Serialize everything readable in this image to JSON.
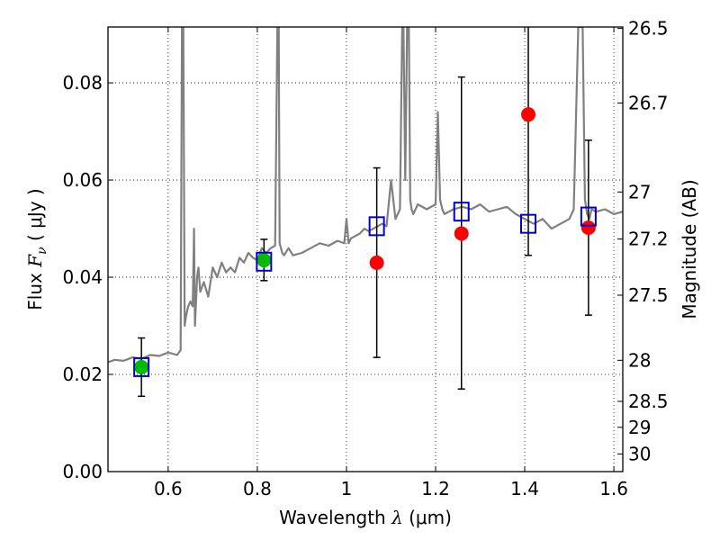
{
  "chart_data": {
    "type": "scatter",
    "xlabel_text": "Wavelength",
    "xlabel_symbol": "λ",
    "xlabel_units": "(μm)",
    "ylabel_text": "Flux",
    "ylabel_symbol": "F",
    "ylabel_subscript": "ν",
    "ylabel_units": "( μJy )",
    "y2label": "Magnitude (AB)",
    "xlim": [
      0.465,
      1.62
    ],
    "ylim": [
      0.0,
      0.0915
    ],
    "xticks": [
      0.6,
      0.8,
      1.0,
      1.2,
      1.4,
      1.6
    ],
    "xtick_labels": [
      "0.6",
      "0.8",
      "1",
      "1.2",
      "1.4",
      "1.6"
    ],
    "yticks": [
      0.0,
      0.02,
      0.04,
      0.06,
      0.08
    ],
    "ytick_labels": [
      "0.00",
      "0.02",
      "0.04",
      "0.06",
      "0.08"
    ],
    "y2ticks": [
      {
        "mag": 26.5,
        "label": "26.5"
      },
      {
        "mag": 26.7,
        "label": "26.7"
      },
      {
        "mag": 27.0,
        "label": "27"
      },
      {
        "mag": 27.2,
        "label": "27.2"
      },
      {
        "mag": 27.5,
        "label": "27.5"
      },
      {
        "mag": 28.0,
        "label": "28"
      },
      {
        "mag": 28.5,
        "label": "28.5"
      },
      {
        "mag": 29.0,
        "label": "29"
      },
      {
        "mag": 30.0,
        "label": "30"
      }
    ],
    "grid": true,
    "series": [
      {
        "name": "model-spectrum",
        "kind": "line",
        "color": "#808080",
        "x": [
          0.465,
          0.48,
          0.5,
          0.52,
          0.54,
          0.56,
          0.58,
          0.6,
          0.62,
          0.628,
          0.631,
          0.634,
          0.637,
          0.64,
          0.645,
          0.65,
          0.655,
          0.658,
          0.66,
          0.663,
          0.665,
          0.668,
          0.672,
          0.68,
          0.69,
          0.7,
          0.71,
          0.72,
          0.73,
          0.74,
          0.75,
          0.76,
          0.77,
          0.78,
          0.79,
          0.8,
          0.81,
          0.82,
          0.83,
          0.84,
          0.845,
          0.848,
          0.85,
          0.853,
          0.856,
          0.86,
          0.87,
          0.88,
          0.9,
          0.92,
          0.94,
          0.96,
          0.98,
          0.995,
          1.0,
          1.005,
          1.01,
          1.02,
          1.03,
          1.04,
          1.05,
          1.06,
          1.07,
          1.08,
          1.09,
          1.1,
          1.11,
          1.12,
          1.125,
          1.128,
          1.132,
          1.136,
          1.14,
          1.143,
          1.146,
          1.15,
          1.16,
          1.18,
          1.2,
          1.205,
          1.21,
          1.215,
          1.22,
          1.24,
          1.26,
          1.28,
          1.3,
          1.32,
          1.34,
          1.36,
          1.38,
          1.4,
          1.42,
          1.44,
          1.46,
          1.48,
          1.5,
          1.51,
          1.52,
          1.53,
          1.535,
          1.54,
          1.545,
          1.55,
          1.56,
          1.58,
          1.6,
          1.62
        ],
        "y": [
          0.0225,
          0.023,
          0.0228,
          0.0235,
          0.0232,
          0.024,
          0.0238,
          0.0245,
          0.024,
          0.025,
          0.0915,
          0.0915,
          0.03,
          0.032,
          0.034,
          0.035,
          0.034,
          0.05,
          0.03,
          0.036,
          0.04,
          0.042,
          0.037,
          0.039,
          0.036,
          0.042,
          0.04,
          0.043,
          0.041,
          0.042,
          0.041,
          0.044,
          0.043,
          0.045,
          0.044,
          0.0435,
          0.046,
          0.045,
          0.046,
          0.0465,
          0.0915,
          0.0915,
          0.047,
          0.046,
          0.045,
          0.0445,
          0.046,
          0.0445,
          0.045,
          0.046,
          0.047,
          0.0465,
          0.0475,
          0.047,
          0.052,
          0.047,
          0.048,
          0.0485,
          0.049,
          0.05,
          0.0495,
          0.05,
          0.0505,
          0.051,
          0.0505,
          0.06,
          0.052,
          0.054,
          0.0915,
          0.0915,
          0.06,
          0.0915,
          0.0915,
          0.056,
          0.054,
          0.053,
          0.055,
          0.054,
          0.055,
          0.074,
          0.056,
          0.054,
          0.053,
          0.054,
          0.0545,
          0.054,
          0.055,
          0.0535,
          0.054,
          0.0545,
          0.053,
          0.052,
          0.051,
          0.052,
          0.05,
          0.051,
          0.052,
          0.054,
          0.0915,
          0.0915,
          0.056,
          0.053,
          0.052,
          0.054,
          0.0535,
          0.054,
          0.053,
          0.0535
        ]
      },
      {
        "name": "model-photometry",
        "kind": "open-square",
        "color": "#0000cc",
        "x": [
          0.54,
          0.815,
          1.068,
          1.258,
          1.408,
          1.543
        ],
        "y": [
          0.0215,
          0.0432,
          0.0505,
          0.0535,
          0.051,
          0.0525
        ]
      },
      {
        "name": "observed-detections",
        "kind": "point",
        "color": "#00bb00",
        "x": [
          0.54,
          0.815
        ],
        "y": [
          0.0215,
          0.0435
        ],
        "err_low": [
          0.0155,
          0.0393
        ],
        "err_high": [
          0.0275,
          0.0478
        ]
      },
      {
        "name": "observed-non-detections",
        "kind": "point",
        "color": "#ff0000",
        "x": [
          1.068,
          1.258,
          1.408,
          1.543
        ],
        "y": [
          0.043,
          0.049,
          0.0735,
          0.0502
        ],
        "err_low": [
          0.0235,
          0.017,
          0.0445,
          0.0322
        ],
        "err_high": [
          0.0625,
          0.0812,
          0.0915,
          0.0682
        ]
      }
    ]
  }
}
